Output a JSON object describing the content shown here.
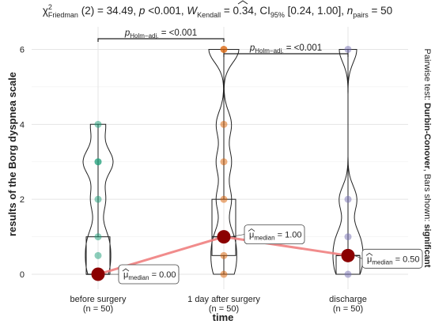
{
  "chart_data": {
    "type": "violin-box-scatter",
    "subtitle_stats": {
      "chi_sq_label": "χ",
      "chi_sq_super": "2",
      "chi_sq_sub": "Friedman",
      "chi_sq_df": "(2)",
      "chi_sq_value": "= 34.49,",
      "p_label": "p",
      "p_value": "<0.001,",
      "w_label": "W",
      "w_sub": "Kendall",
      "w_value": "= 0.34,",
      "ci_label": "CI",
      "ci_sub": "95%",
      "ci_value": "[0.24, 1.00],",
      "n_label": "n",
      "n_sub": "pairs",
      "n_value": "= 50"
    },
    "xlabel": "time",
    "ylabel": "results of the Borg dyspnea scale",
    "caption_right": {
      "prefix": "Pairwise test: ",
      "test": "Durbin-Conover",
      "middle": ", Bars shown: ",
      "shown": "significant"
    },
    "ylim": [
      -0.4,
      6.6
    ],
    "y_ticks": [
      0,
      2,
      4,
      6
    ],
    "y_tick_labels": [
      "0",
      "2",
      "4",
      "6"
    ],
    "categories": [
      {
        "label": "before surgery",
        "n_label": "(n = 50)",
        "color": "#1B9E77",
        "points": [
          4,
          3,
          3,
          2,
          1,
          0.5,
          0
        ],
        "box": {
          "q1": 0,
          "median": 0,
          "q3": 1,
          "whisker_low": 0,
          "whisker_high": 4
        },
        "median": 0.0,
        "median_label": "= 0.00"
      },
      {
        "label": "1 day after surgery",
        "n_label": "(n = 50)",
        "color": "#D95F02",
        "points": [
          6,
          6,
          4,
          3,
          2,
          1,
          0.5,
          0
        ],
        "box": {
          "q1": 0.5,
          "median": 1,
          "q3": 2,
          "whisker_low": 0,
          "whisker_high": 6
        },
        "median": 1.0,
        "median_label": "= 1.00"
      },
      {
        "label": "discharge",
        "n_label": "(n = 50)",
        "color": "#7570B3",
        "points": [
          6,
          2,
          1,
          0.5,
          0
        ],
        "box": {
          "q1": 0,
          "median": 0.5,
          "q3": 0.5,
          "whisker_low": 0,
          "whisker_high": 6
        },
        "median": 0.5,
        "median_label": "= 0.50"
      }
    ],
    "median_symbol": "μ",
    "median_sub": "median",
    "median_color": "#8B0000",
    "line_color": "#F08080",
    "pairwise": [
      {
        "from": 0,
        "to": 1,
        "label_p": "p",
        "label_sub": "Holm−adj.",
        "label_value": " = <0.001"
      },
      {
        "from": 1,
        "to": 2,
        "label_p": "p",
        "label_sub": "Holm−adj.",
        "label_value": " = <0.001"
      }
    ],
    "grid": true
  }
}
